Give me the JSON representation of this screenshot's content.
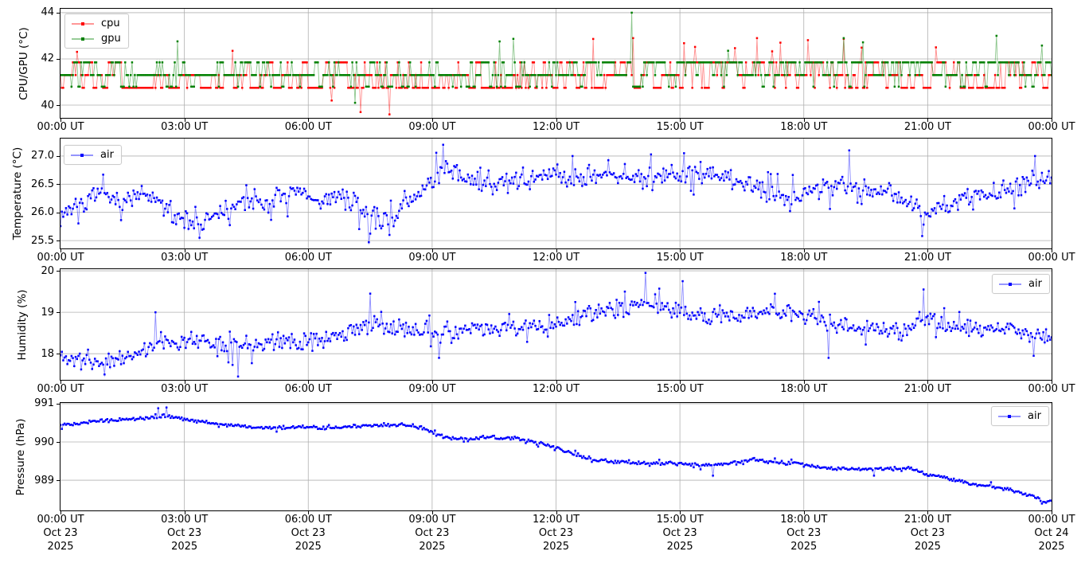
{
  "figure": {
    "background": "#ffffff",
    "text_color": "#000000",
    "grid_color": "#b0b0b0"
  },
  "x_axis": {
    "hours_span": 24,
    "sample_minutes": 2,
    "ticks_hours": [
      0,
      3,
      6,
      9,
      12,
      15,
      18,
      21,
      24
    ],
    "time_labels": [
      "00:00 UT",
      "03:00 UT",
      "06:00 UT",
      "09:00 UT",
      "12:00 UT",
      "15:00 UT",
      "18:00 UT",
      "21:00 UT",
      "00:00 UT"
    ],
    "date_labels": [
      "Oct 23",
      "Oct 23",
      "Oct 23",
      "Oct 23",
      "Oct 23",
      "Oct 23",
      "Oct 23",
      "Oct 23",
      "Oct 24"
    ],
    "year_labels": [
      "2025",
      "2025",
      "2025",
      "2025",
      "2025",
      "2025",
      "2025",
      "2025",
      "2025"
    ]
  },
  "chart_data": [
    {
      "type": "line",
      "panel": "cpu_gpu",
      "ylabel": "CPU/GPU (°C)",
      "yticks": [
        40,
        42,
        44
      ],
      "ytick_labels": [
        "40",
        "42",
        "44"
      ],
      "ylim": [
        39.45,
        44.17
      ],
      "xlim_hours": [
        0,
        24
      ],
      "grid": true,
      "legend": {
        "position": "upper left",
        "entries": [
          {
            "label": "cpu",
            "color": "#ff0000"
          },
          {
            "label": "gpu",
            "color": "#008000"
          }
        ]
      },
      "series": [
        {
          "name": "cpu",
          "color": "#ff0000",
          "style": "levels",
          "seed": 3,
          "levels": [
            40.75,
            41.3,
            41.85
          ],
          "weights_early": [
            0.55,
            0.28,
            0.17
          ],
          "weights_late": [
            0.3,
            0.35,
            0.35
          ],
          "shift_hour": 12,
          "switch_prob": 0.6,
          "spike_start_hour": 10,
          "spike_prob": 0.02,
          "spike_range": [
            42.3,
            42.9
          ],
          "anomalies": [
            [
              4.17,
              42.35
            ],
            [
              6.57,
              40.2
            ],
            [
              7.28,
              39.7
            ],
            [
              7.98,
              39.6
            ],
            [
              13.85,
              42.9
            ],
            [
              16.85,
              42.9
            ],
            [
              21.2,
              42.5
            ]
          ]
        },
        {
          "name": "gpu",
          "color": "#008000",
          "style": "levels",
          "seed": 5,
          "levels": [
            40.8,
            41.3,
            41.85
          ],
          "weights_early": [
            0.22,
            0.55,
            0.23
          ],
          "weights_late": [
            0.1,
            0.4,
            0.5
          ],
          "shift_hour": 12,
          "switch_prob": 0.6,
          "spike_start_hour": 10,
          "spike_prob": 0.012,
          "spike_range": [
            42.3,
            42.9
          ],
          "anomalies": [
            [
              7.13,
              40.1
            ],
            [
              13.83,
              44.0
            ],
            [
              18.95,
              42.9
            ],
            [
              22.68,
              43.0
            ]
          ]
        }
      ]
    },
    {
      "type": "line",
      "panel": "temperature",
      "ylabel": "Temperature (°C)",
      "yticks": [
        25.5,
        26.0,
        26.5,
        27.0
      ],
      "ytick_labels": [
        "25.5",
        "26.0",
        "26.5",
        "27.0"
      ],
      "ylim": [
        25.36,
        27.31
      ],
      "xlim_hours": [
        0,
        24
      ],
      "grid": true,
      "legend": {
        "position": "upper left",
        "entries": [
          {
            "label": "air",
            "color": "#0000ff"
          }
        ]
      },
      "series": [
        {
          "name": "air",
          "color": "#0000ff",
          "style": "trend_noise",
          "seed": 7,
          "noise_amp": 0.21,
          "trend": [
            [
              0,
              25.95
            ],
            [
              0.3,
              26.1
            ],
            [
              0.7,
              26.2
            ],
            [
              1,
              26.3
            ],
            [
              1.3,
              26.2
            ],
            [
              1.7,
              26.25
            ],
            [
              2,
              26.3
            ],
            [
              2.3,
              26.2
            ],
            [
              2.7,
              26.0
            ],
            [
              3,
              25.9
            ],
            [
              3.4,
              25.8
            ],
            [
              3.8,
              25.95
            ],
            [
              4.2,
              26.1
            ],
            [
              4.6,
              26.2
            ],
            [
              5,
              26.15
            ],
            [
              5.4,
              26.3
            ],
            [
              5.8,
              26.35
            ],
            [
              6.2,
              26.2
            ],
            [
              6.6,
              26.3
            ],
            [
              7,
              26.2
            ],
            [
              7.4,
              26.0
            ],
            [
              7.8,
              25.85
            ],
            [
              8.1,
              25.95
            ],
            [
              8.5,
              26.2
            ],
            [
              9,
              26.6
            ],
            [
              9.3,
              26.75
            ],
            [
              9.6,
              26.7
            ],
            [
              10,
              26.55
            ],
            [
              10.4,
              26.45
            ],
            [
              10.8,
              26.5
            ],
            [
              11.2,
              26.55
            ],
            [
              11.6,
              26.65
            ],
            [
              12,
              26.7
            ],
            [
              12.4,
              26.6
            ],
            [
              12.8,
              26.65
            ],
            [
              13.2,
              26.7
            ],
            [
              13.6,
              26.7
            ],
            [
              14,
              26.6
            ],
            [
              14.4,
              26.65
            ],
            [
              14.8,
              26.7
            ],
            [
              15.2,
              26.7
            ],
            [
              15.6,
              26.6
            ],
            [
              16,
              26.65
            ],
            [
              16.4,
              26.55
            ],
            [
              16.8,
              26.45
            ],
            [
              17.2,
              26.35
            ],
            [
              17.6,
              26.3
            ],
            [
              18,
              26.35
            ],
            [
              18.4,
              26.4
            ],
            [
              18.8,
              26.45
            ],
            [
              19.2,
              26.5
            ],
            [
              19.6,
              26.4
            ],
            [
              20,
              26.45
            ],
            [
              20.4,
              26.25
            ],
            [
              20.9,
              25.95
            ],
            [
              21.3,
              26.1
            ],
            [
              21.7,
              26.2
            ],
            [
              22.1,
              26.25
            ],
            [
              22.5,
              26.35
            ],
            [
              23,
              26.4
            ],
            [
              23.5,
              26.55
            ],
            [
              24,
              26.6
            ]
          ],
          "anomalies": [
            [
              3.35,
              25.55
            ],
            [
              7.45,
              25.47
            ],
            [
              7.95,
              25.6
            ],
            [
              9.25,
              27.2
            ],
            [
              12.4,
              27.0
            ],
            [
              15.1,
              27.05
            ],
            [
              19.1,
              27.1
            ],
            [
              20.85,
              25.58
            ],
            [
              23.6,
              27.0
            ]
          ]
        }
      ]
    },
    {
      "type": "line",
      "panel": "humidity",
      "ylabel": "Humidity (%)",
      "yticks": [
        18,
        19,
        20
      ],
      "ytick_labels": [
        "18",
        "19",
        "20"
      ],
      "ylim": [
        17.37,
        20.04
      ],
      "xlim_hours": [
        0,
        24
      ],
      "grid": true,
      "legend": {
        "position": "upper right",
        "entries": [
          {
            "label": "air",
            "color": "#0000ff"
          }
        ]
      },
      "series": [
        {
          "name": "air",
          "color": "#0000ff",
          "style": "trend_noise",
          "seed": 11,
          "noise_amp": 0.24,
          "trend": [
            [
              0,
              17.95
            ],
            [
              0.4,
              17.85
            ],
            [
              0.8,
              17.8
            ],
            [
              1.2,
              17.85
            ],
            [
              1.6,
              17.9
            ],
            [
              2,
              18.1
            ],
            [
              2.4,
              18.3
            ],
            [
              2.8,
              18.3
            ],
            [
              3.2,
              18.35
            ],
            [
              3.6,
              18.3
            ],
            [
              4,
              18.25
            ],
            [
              4.4,
              18.2
            ],
            [
              4.8,
              18.25
            ],
            [
              5.2,
              18.3
            ],
            [
              5.6,
              18.3
            ],
            [
              6,
              18.35
            ],
            [
              6.4,
              18.35
            ],
            [
              6.8,
              18.45
            ],
            [
              7.2,
              18.6
            ],
            [
              7.6,
              18.7
            ],
            [
              8,
              18.6
            ],
            [
              8.4,
              18.6
            ],
            [
              8.8,
              18.65
            ],
            [
              9.2,
              18.45
            ],
            [
              9.6,
              18.5
            ],
            [
              10,
              18.6
            ],
            [
              10.4,
              18.6
            ],
            [
              10.8,
              18.65
            ],
            [
              11.2,
              18.6
            ],
            [
              11.6,
              18.6
            ],
            [
              12,
              18.7
            ],
            [
              12.4,
              18.85
            ],
            [
              12.8,
              18.95
            ],
            [
              13.2,
              19.05
            ],
            [
              13.6,
              19.1
            ],
            [
              14,
              19.2
            ],
            [
              14.4,
              19.25
            ],
            [
              14.8,
              19.05
            ],
            [
              15.2,
              18.95
            ],
            [
              15.6,
              18.85
            ],
            [
              16,
              18.9
            ],
            [
              16.4,
              18.9
            ],
            [
              16.8,
              19.0
            ],
            [
              17.2,
              19.05
            ],
            [
              17.6,
              18.95
            ],
            [
              18,
              18.95
            ],
            [
              18.4,
              18.8
            ],
            [
              18.8,
              18.7
            ],
            [
              19.2,
              18.65
            ],
            [
              19.6,
              18.6
            ],
            [
              20,
              18.55
            ],
            [
              20.4,
              18.5
            ],
            [
              20.8,
              18.75
            ],
            [
              21.1,
              18.85
            ],
            [
              21.4,
              18.7
            ],
            [
              21.8,
              18.6
            ],
            [
              22.2,
              18.6
            ],
            [
              22.6,
              18.55
            ],
            [
              23,
              18.6
            ],
            [
              23.4,
              18.5
            ],
            [
              23.8,
              18.4
            ],
            [
              24,
              18.35
            ]
          ],
          "anomalies": [
            [
              1.05,
              17.5
            ],
            [
              2.3,
              19.0
            ],
            [
              4.3,
              17.45
            ],
            [
              7.5,
              19.45
            ],
            [
              9.15,
              17.9
            ],
            [
              14.15,
              19.95
            ],
            [
              15.05,
              19.75
            ],
            [
              18.6,
              17.9
            ],
            [
              20.9,
              19.55
            ],
            [
              23.55,
              17.95
            ]
          ]
        }
      ]
    },
    {
      "type": "line",
      "panel": "pressure",
      "ylabel": "Pressure (hPa)",
      "yticks": [
        989,
        990,
        991
      ],
      "ytick_labels": [
        "989",
        "990",
        "991"
      ],
      "ylim": [
        988.21,
        991.02
      ],
      "xlim_hours": [
        0,
        24
      ],
      "grid": true,
      "legend": {
        "position": "upper right",
        "entries": [
          {
            "label": "air",
            "color": "#0000ff"
          }
        ]
      },
      "series": [
        {
          "name": "air",
          "color": "#0000ff",
          "style": "trend_noise",
          "seed": 13,
          "noise_amp": 0.05,
          "trend": [
            [
              0,
              990.45
            ],
            [
              0.5,
              990.5
            ],
            [
              1,
              990.55
            ],
            [
              1.5,
              990.58
            ],
            [
              2,
              990.62
            ],
            [
              2.5,
              990.68
            ],
            [
              3,
              990.6
            ],
            [
              3.5,
              990.52
            ],
            [
              4,
              990.45
            ],
            [
              4.5,
              990.4
            ],
            [
              5,
              990.37
            ],
            [
              5.5,
              990.38
            ],
            [
              6,
              990.4
            ],
            [
              6.5,
              990.36
            ],
            [
              7,
              990.4
            ],
            [
              7.5,
              990.42
            ],
            [
              8,
              990.44
            ],
            [
              8.5,
              990.42
            ],
            [
              8.8,
              990.35
            ],
            [
              9.1,
              990.2
            ],
            [
              9.4,
              990.1
            ],
            [
              10,
              990.08
            ],
            [
              10.5,
              990.12
            ],
            [
              11,
              990.1
            ],
            [
              11.5,
              990.0
            ],
            [
              12,
              989.85
            ],
            [
              12.4,
              989.7
            ],
            [
              12.8,
              989.55
            ],
            [
              13.2,
              989.5
            ],
            [
              13.6,
              989.47
            ],
            [
              14,
              989.45
            ],
            [
              14.5,
              989.43
            ],
            [
              15,
              989.45
            ],
            [
              15.6,
              989.38
            ],
            [
              16.2,
              989.45
            ],
            [
              16.8,
              989.55
            ],
            [
              17.2,
              989.48
            ],
            [
              17.6,
              989.45
            ],
            [
              18,
              989.42
            ],
            [
              18.5,
              989.32
            ],
            [
              19,
              989.3
            ],
            [
              19.5,
              989.28
            ],
            [
              20,
              989.3
            ],
            [
              20.5,
              989.33
            ],
            [
              21,
              989.15
            ],
            [
              21.5,
              989.05
            ],
            [
              22,
              988.9
            ],
            [
              22.5,
              988.85
            ],
            [
              23,
              988.75
            ],
            [
              23.3,
              988.65
            ],
            [
              23.6,
              988.55
            ],
            [
              23.85,
              988.42
            ],
            [
              24,
              988.5
            ]
          ],
          "anomalies": [
            [
              2.35,
              990.88
            ],
            [
              2.55,
              990.9
            ],
            [
              9.05,
              990.3
            ],
            [
              15.8,
              989.12
            ],
            [
              19.7,
              989.12
            ]
          ]
        }
      ]
    }
  ]
}
